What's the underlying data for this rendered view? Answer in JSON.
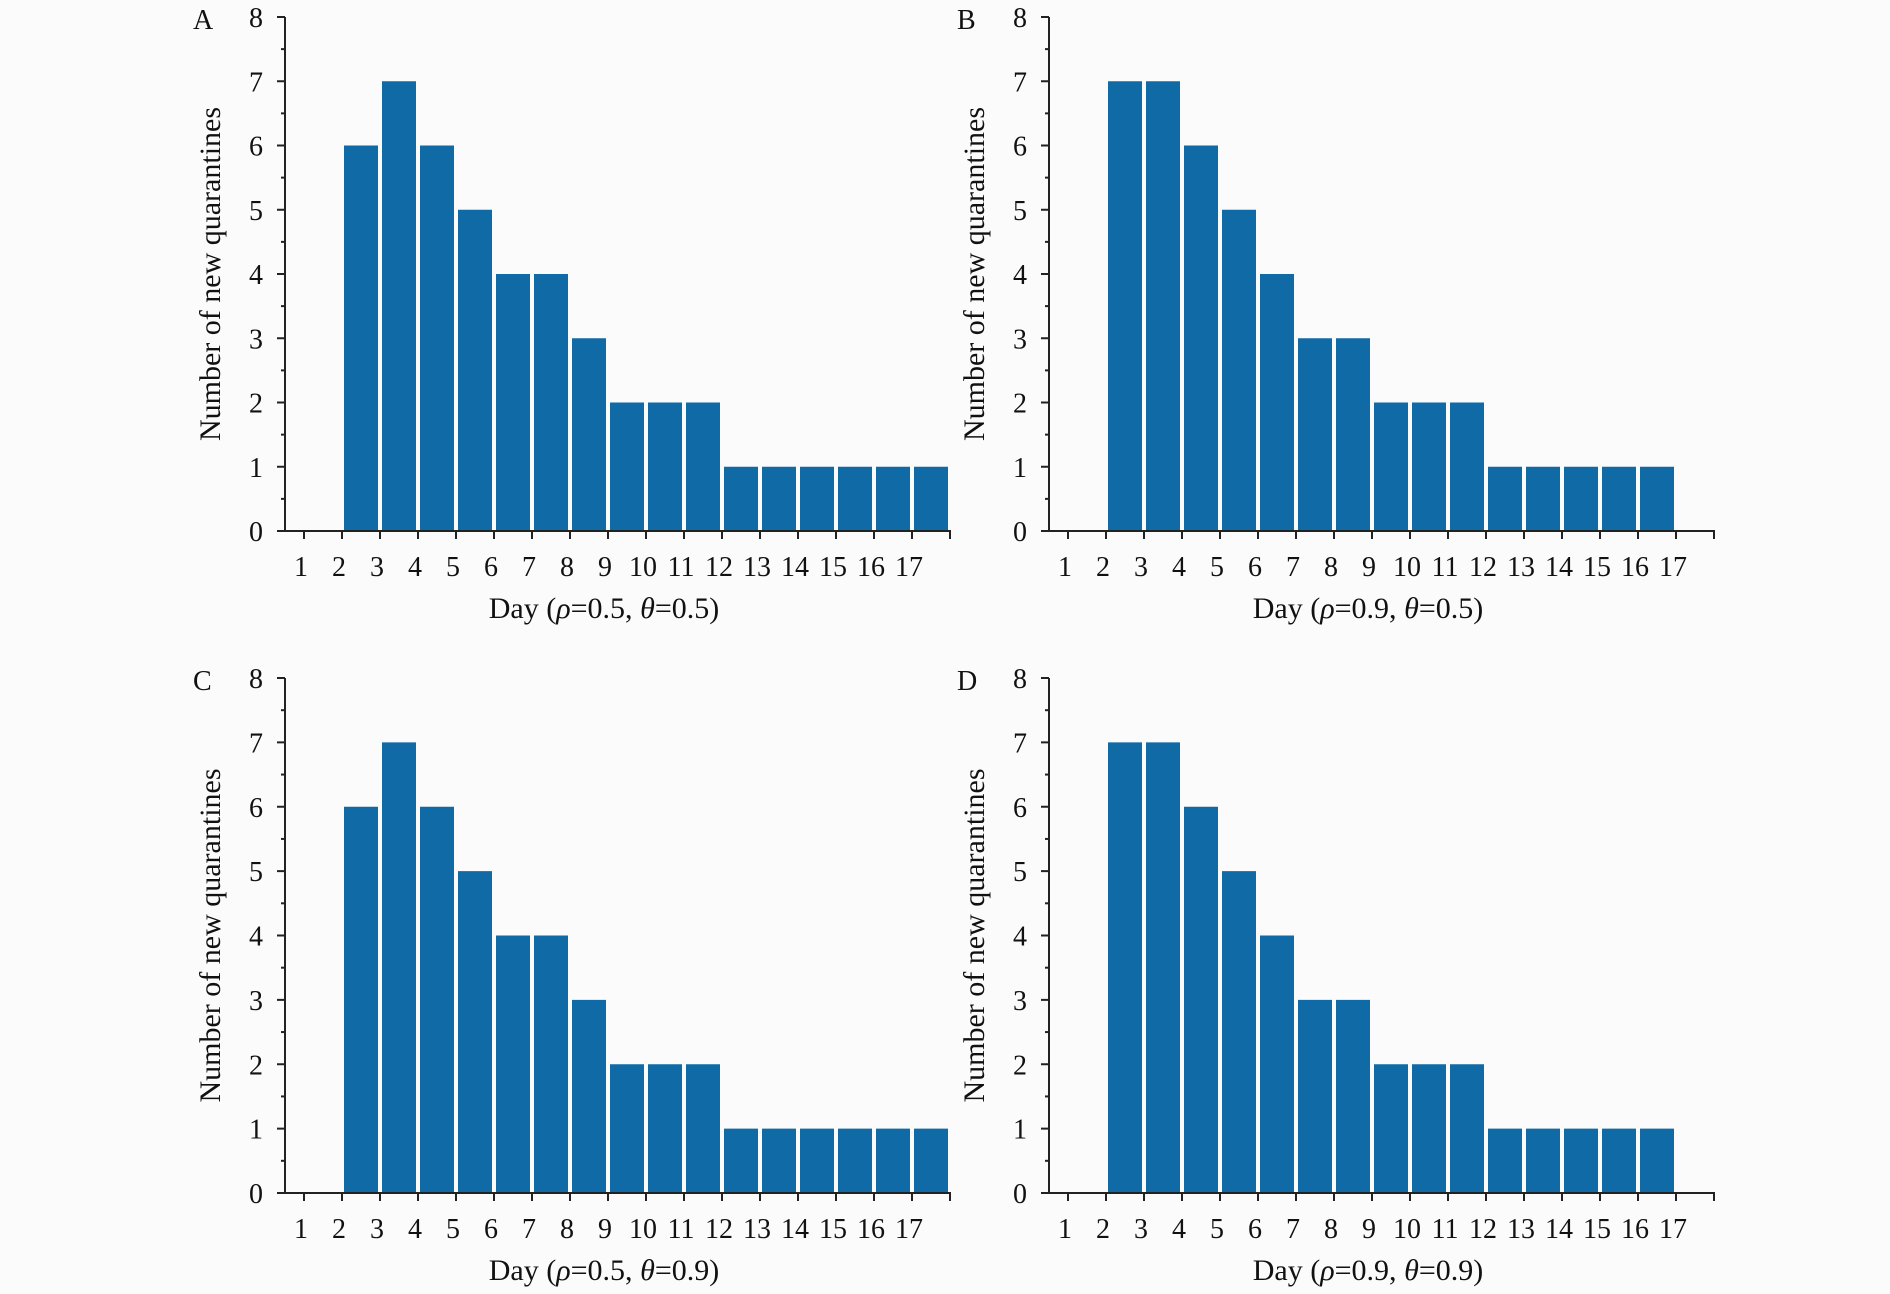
{
  "figure": {
    "bar_color": "#0f6aa6"
  },
  "chart_data": [
    {
      "type": "bar",
      "panel": "A",
      "categories": [
        "1",
        "2",
        "3",
        "4",
        "5",
        "6",
        "7",
        "8",
        "9",
        "10",
        "11",
        "12",
        "13",
        "14",
        "15",
        "16",
        "17"
      ],
      "values": [
        0,
        6,
        7,
        6,
        5,
        4,
        4,
        3,
        2,
        2,
        2,
        1,
        1,
        1,
        1,
        1,
        1
      ],
      "ylabel": "Number of new quarantines",
      "xlabel": "Day (ρ=0.5, θ=0.5)",
      "xlabel_parts": {
        "prefix": "Day (",
        "var1": "ρ",
        "val1": "=0.5, ",
        "var2": "θ",
        "val2": "=0.5)"
      },
      "ylim": [
        0,
        8
      ],
      "yticks": [
        "0",
        "1",
        "2",
        "3",
        "4",
        "5",
        "6",
        "7",
        "8"
      ]
    },
    {
      "type": "bar",
      "panel": "B",
      "categories": [
        "1",
        "2",
        "3",
        "4",
        "5",
        "6",
        "7",
        "8",
        "9",
        "10",
        "11",
        "12",
        "13",
        "14",
        "15",
        "16",
        "17"
      ],
      "values": [
        0,
        7,
        7,
        6,
        5,
        4,
        3,
        3,
        2,
        2,
        2,
        1,
        1,
        1,
        1,
        1,
        0
      ],
      "ylabel": "Number of new quarantines",
      "xlabel": "Day (ρ=0.9, θ=0.5)",
      "xlabel_parts": {
        "prefix": "Day (",
        "var1": "ρ",
        "val1": "=0.9, ",
        "var2": "θ",
        "val2": "=0.5)"
      },
      "ylim": [
        0,
        8
      ],
      "yticks": [
        "0",
        "1",
        "2",
        "3",
        "4",
        "5",
        "6",
        "7",
        "8"
      ]
    },
    {
      "type": "bar",
      "panel": "C",
      "categories": [
        "1",
        "2",
        "3",
        "4",
        "5",
        "6",
        "7",
        "8",
        "9",
        "10",
        "11",
        "12",
        "13",
        "14",
        "15",
        "16",
        "17"
      ],
      "values": [
        0,
        6,
        7,
        6,
        5,
        4,
        4,
        3,
        2,
        2,
        2,
        1,
        1,
        1,
        1,
        1,
        1
      ],
      "ylabel": "Number of new quarantines",
      "xlabel": "Day (ρ=0.5, θ=0.9)",
      "xlabel_parts": {
        "prefix": "Day (",
        "var1": "ρ",
        "val1": "=0.5, ",
        "var2": "θ",
        "val2": "=0.9)"
      },
      "ylim": [
        0,
        8
      ],
      "yticks": [
        "0",
        "1",
        "2",
        "3",
        "4",
        "5",
        "6",
        "7",
        "8"
      ]
    },
    {
      "type": "bar",
      "panel": "D",
      "categories": [
        "1",
        "2",
        "3",
        "4",
        "5",
        "6",
        "7",
        "8",
        "9",
        "10",
        "11",
        "12",
        "13",
        "14",
        "15",
        "16",
        "17"
      ],
      "values": [
        0,
        7,
        7,
        6,
        5,
        4,
        3,
        3,
        2,
        2,
        2,
        1,
        1,
        1,
        1,
        1,
        0
      ],
      "ylabel": "Number of new quarantines",
      "xlabel": "Day (ρ=0.9, θ=0.9)",
      "xlabel_parts": {
        "prefix": "Day (",
        "var1": "ρ",
        "val1": "=0.9, ",
        "var2": "θ",
        "val2": "=0.9)"
      },
      "ylim": [
        0,
        8
      ],
      "yticks": [
        "0",
        "1",
        "2",
        "3",
        "4",
        "5",
        "6",
        "7",
        "8"
      ]
    }
  ]
}
